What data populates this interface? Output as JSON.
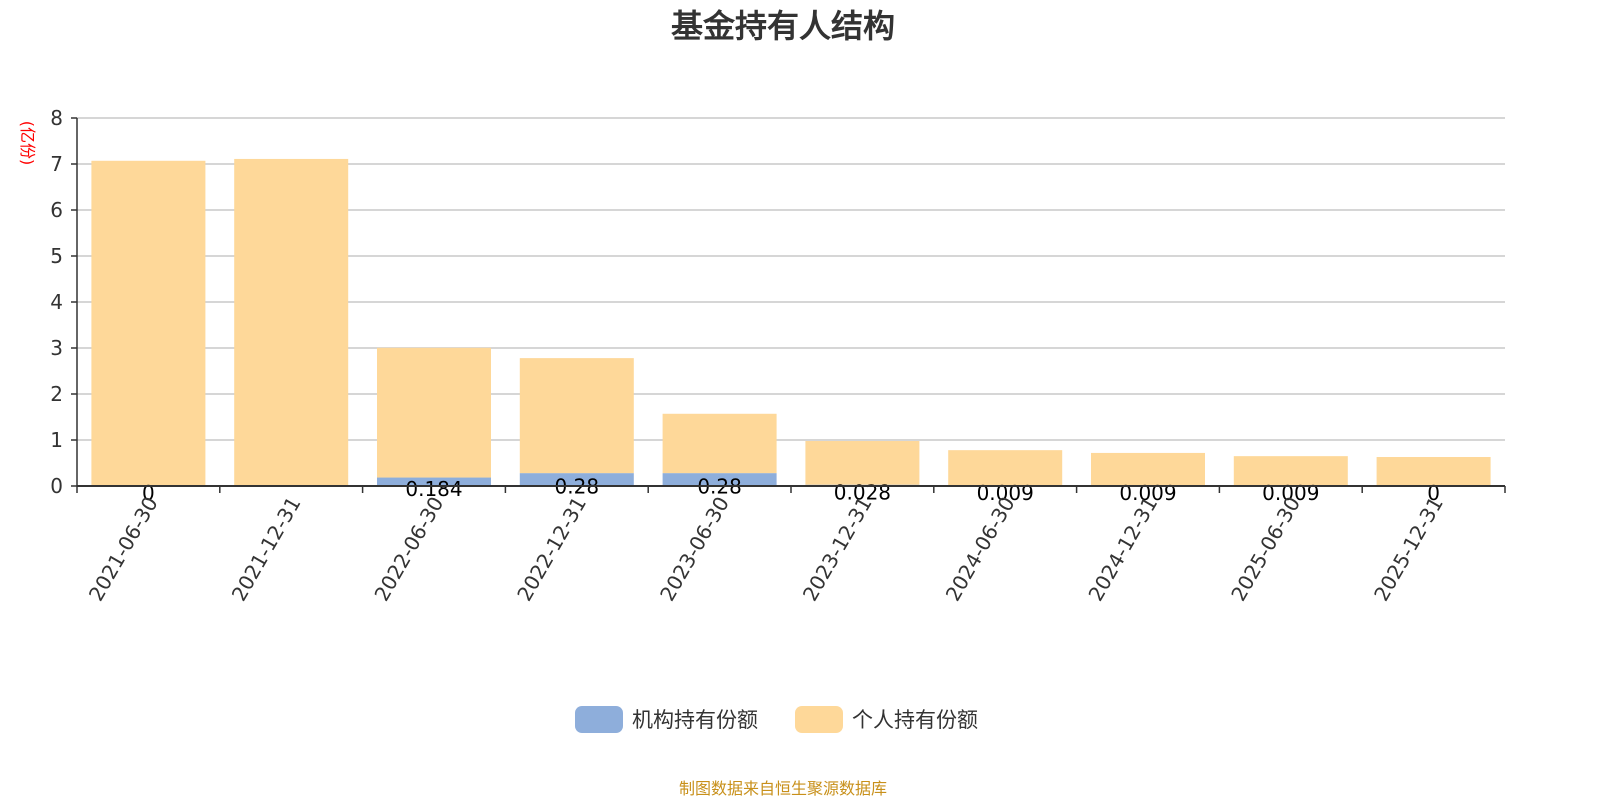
{
  "chart_data": {
    "type": "bar",
    "stacked": true,
    "title": "基金持有人结构",
    "ylabel": "(亿份)",
    "xlabel": "",
    "ylim": [
      0,
      8
    ],
    "yticks": [
      0,
      1,
      2,
      3,
      4,
      5,
      6,
      7,
      8
    ],
    "grid": true,
    "legend_position": "bottom",
    "categories": [
      "2021-06-30",
      "2021-12-31",
      "2022-06-30",
      "2022-12-31",
      "2023-06-30",
      "2023-12-31",
      "2024-06-30",
      "2024-12-31",
      "2025-06-30",
      "2025-12-31"
    ],
    "series": [
      {
        "name": "机构持有份额",
        "color": "#8eaedb",
        "values": [
          0,
          0,
          0.184,
          0.28,
          0.28,
          0.028,
          0.009,
          0.009,
          0.009,
          0
        ],
        "labels": [
          "0",
          "",
          "0.184",
          "0.28",
          "0.28",
          "0.028",
          "0.009",
          "0.009",
          "0.009",
          "0"
        ]
      },
      {
        "name": "个人持有份额",
        "color": "#fed899",
        "values": [
          7.07,
          7.11,
          2.82,
          2.5,
          1.29,
          0.95,
          0.77,
          0.71,
          0.64,
          0.63
        ]
      }
    ],
    "source": "制图数据来自恒生聚源数据库"
  }
}
